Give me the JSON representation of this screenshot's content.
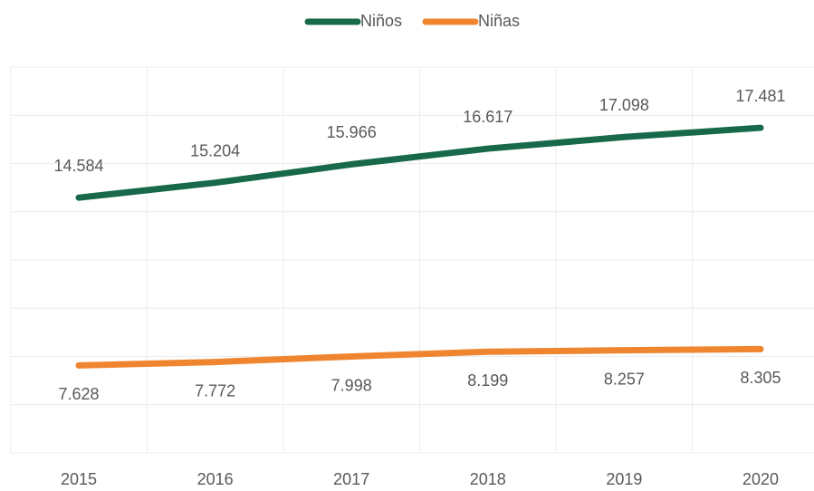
{
  "chart_data": {
    "type": "line",
    "categories": [
      "2015",
      "2016",
      "2017",
      "2018",
      "2019",
      "2020"
    ],
    "series": [
      {
        "name": "Niños",
        "color": "#17694a",
        "values": [
          14584,
          15204,
          15966,
          16617,
          17098,
          17481
        ],
        "value_labels": [
          "14.584",
          "15.204",
          "15.966",
          "16.617",
          "17.098",
          "17.481"
        ]
      },
      {
        "name": "Niñas",
        "color": "#f08530",
        "values": [
          7628,
          7772,
          7998,
          8199,
          8257,
          8305
        ],
        "value_labels": [
          "7.628",
          "7.772",
          "7.998",
          "8.199",
          "8.257",
          "8.305"
        ]
      }
    ],
    "ylim": [
      4000,
      20000
    ],
    "yticks": [
      4000,
      6000,
      8000,
      10000,
      12000,
      14000,
      16000,
      18000,
      20000
    ],
    "grid": true,
    "legend": "top"
  }
}
